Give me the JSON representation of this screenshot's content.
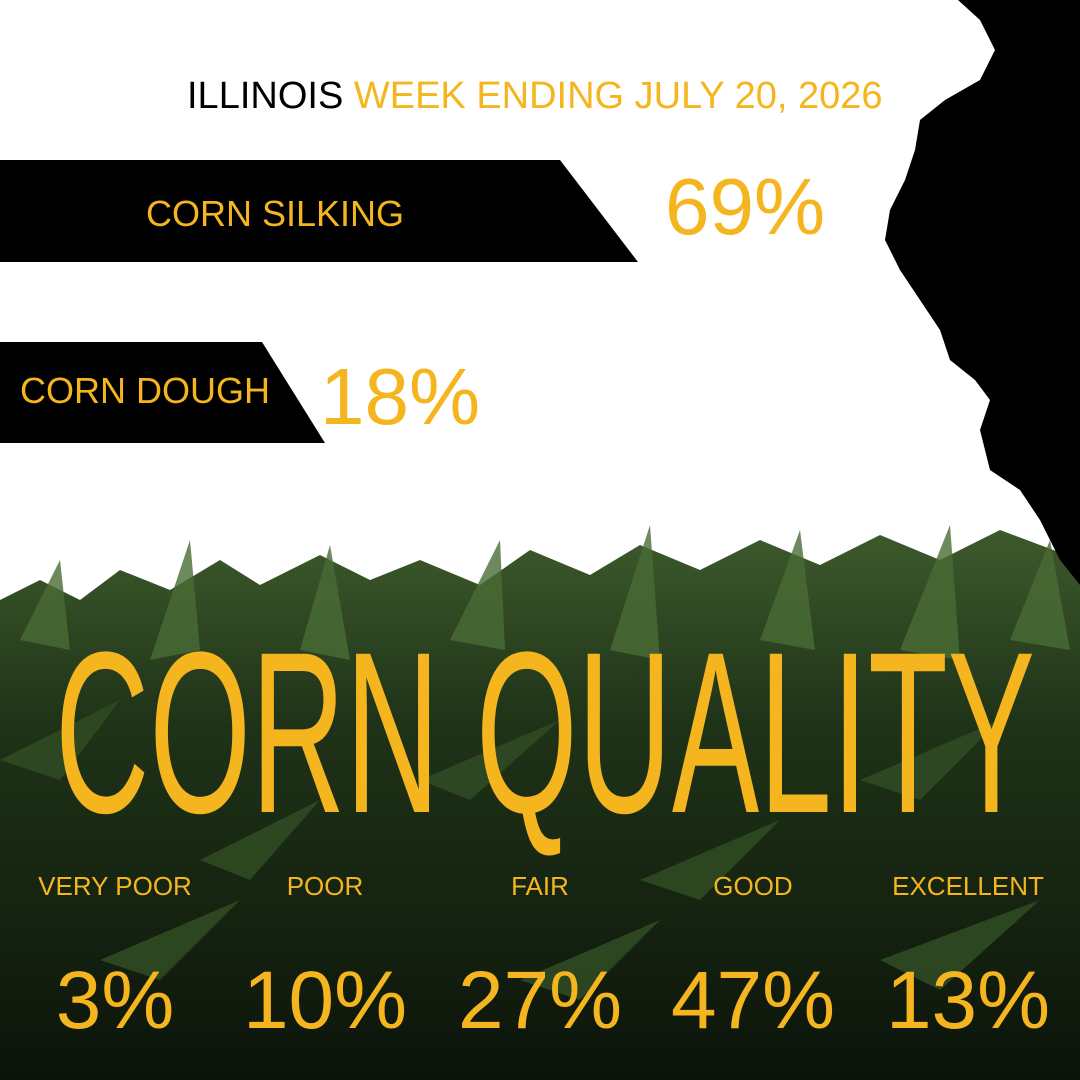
{
  "header": {
    "state": "ILLINOIS",
    "week": "WEEK ENDING JULY 20, 2026"
  },
  "progress": [
    {
      "label": "CORN SILKING",
      "value": "69%"
    },
    {
      "label": "CORN DOUGH",
      "value": "18%"
    }
  ],
  "quality": {
    "title": "CORN QUALITY",
    "ratings": [
      {
        "label": "VERY POOR",
        "value": "3%"
      },
      {
        "label": "POOR",
        "value": "10%"
      },
      {
        "label": "FAIR",
        "value": "27%"
      },
      {
        "label": "GOOD",
        "value": "47%"
      },
      {
        "label": "EXCELLENT",
        "value": "13%"
      }
    ]
  }
}
